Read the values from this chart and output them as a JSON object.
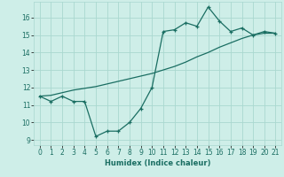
{
  "xlabel": "Humidex (Indice chaleur)",
  "background_color": "#ceeee8",
  "grid_color": "#aad8d0",
  "line_color": "#1a6e62",
  "xlim": [
    -0.5,
    21.5
  ],
  "ylim": [
    8.7,
    16.9
  ],
  "yticks": [
    9,
    10,
    11,
    12,
    13,
    14,
    15,
    16
  ],
  "xticks": [
    0,
    1,
    2,
    3,
    4,
    5,
    6,
    7,
    8,
    9,
    10,
    11,
    12,
    13,
    14,
    15,
    16,
    17,
    18,
    19,
    20,
    21
  ],
  "line1_x": [
    0,
    1,
    2,
    3,
    4,
    5,
    6,
    7,
    8,
    9,
    10,
    11,
    12,
    13,
    14,
    15,
    16,
    17,
    18,
    19,
    20,
    21
  ],
  "line1_y": [
    11.5,
    11.2,
    11.5,
    11.2,
    11.2,
    9.2,
    9.5,
    9.5,
    10.0,
    10.8,
    12.0,
    15.2,
    15.3,
    15.7,
    15.5,
    16.6,
    15.8,
    15.2,
    15.4,
    15.0,
    15.2,
    15.1
  ],
  "line2_x": [
    0,
    1,
    2,
    3,
    4,
    5,
    6,
    7,
    8,
    9,
    10,
    11,
    12,
    13,
    14,
    15,
    16,
    17,
    18,
    19,
    20,
    21
  ],
  "line2_y": [
    11.5,
    11.55,
    11.7,
    11.85,
    11.95,
    12.05,
    12.2,
    12.35,
    12.5,
    12.65,
    12.8,
    13.0,
    13.2,
    13.45,
    13.75,
    14.0,
    14.3,
    14.55,
    14.8,
    15.0,
    15.1,
    15.1
  ],
  "xlabel_fontsize": 6,
  "tick_fontsize": 5.5
}
